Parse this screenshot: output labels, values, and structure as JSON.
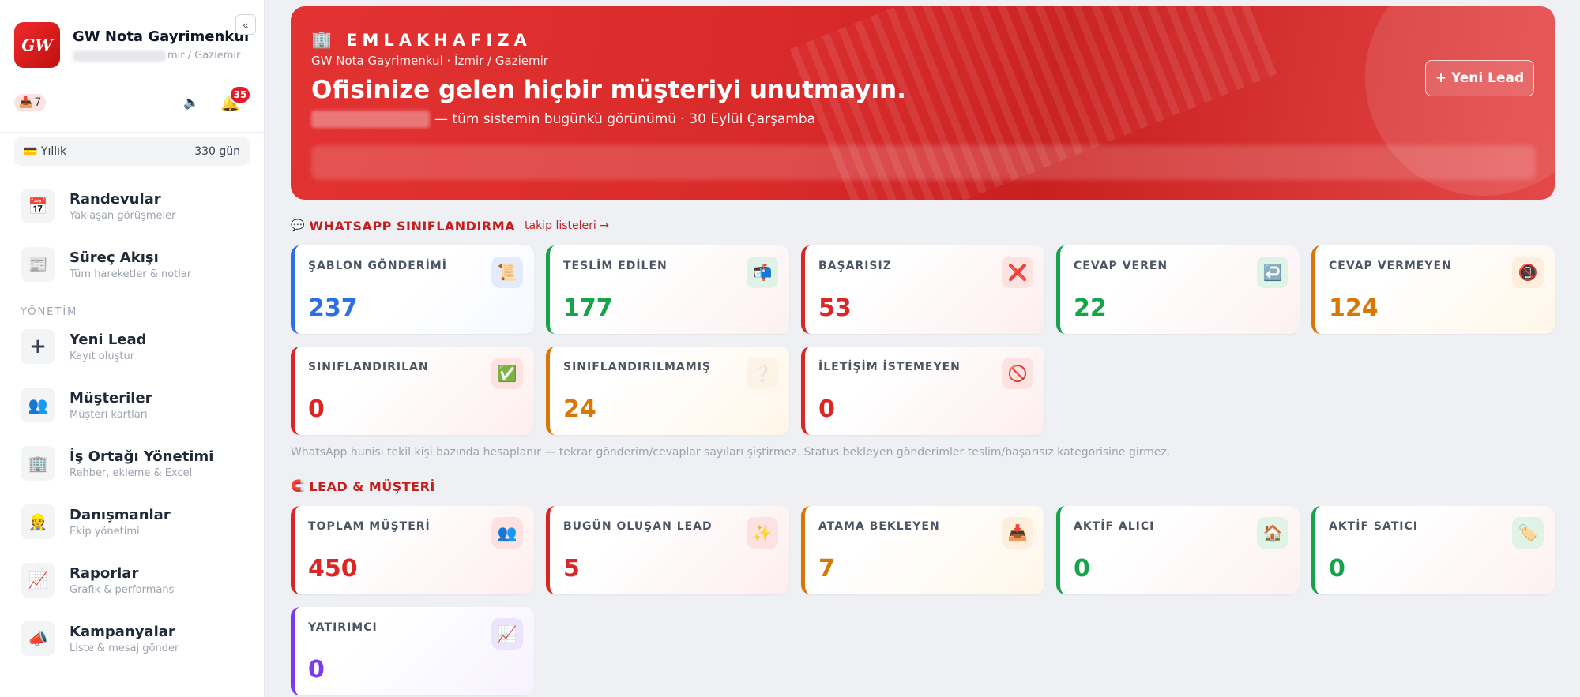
{
  "sidebar": {
    "brand_logo": "GW",
    "brand_name": "GW Nota Gayrimenkul",
    "brand_location": "mir / Gaziemir",
    "collapse_label": "«",
    "inbox_icon": "📥",
    "inbox_count": "7",
    "speaker_icon": "🔈",
    "bell_icon": "🔔",
    "notifications": "35",
    "plan_icon": "💳",
    "plan_name": "Yıllık",
    "plan_days": "330 gün",
    "items_top": [
      {
        "icon": "📅",
        "title": "Randevular",
        "sub": "Yaklaşan görüşmeler"
      },
      {
        "icon": "📰",
        "title": "Süreç Akışı",
        "sub": "Tüm hareketler & notlar"
      }
    ],
    "section_label": "YÖNETİM",
    "items": [
      {
        "icon": "+",
        "title": "Yeni Lead",
        "sub": "Kayıt oluştur"
      },
      {
        "icon": "👥",
        "title": "Müşteriler",
        "sub": "Müşteri kartları"
      },
      {
        "icon": "🏢",
        "title": "İş Ortağı Yönetimi",
        "sub": "Rehber, ekleme & Excel"
      },
      {
        "icon": "👷",
        "title": "Danışmanlar",
        "sub": "Ekip yönetimi"
      },
      {
        "icon": "📈",
        "title": "Raporlar",
        "sub": "Grafik & performans"
      },
      {
        "icon": "📣",
        "title": "Kampanyalar",
        "sub": "Liste & mesaj gönder"
      }
    ]
  },
  "hero": {
    "brand_icon": "🏢",
    "brand": "EMLAKHAFIZA",
    "location": "GW Nota Gayrimenkul · İzmir / Gaziemir",
    "title": "Ofisinize gelen hiçbir müşteriyi unutmayın.",
    "subtitle": "— tüm sistemin bugünkü görünümü · 30 Eylül Çarşamba",
    "new_lead_button": "+ Yeni Lead"
  },
  "whatsapp": {
    "icon": "💬",
    "title": "WHATSAPP SINIFLANDIRMA",
    "link": "takip listeleri →",
    "cards": [
      {
        "label": "ŞABLON GÖNDERİMİ",
        "value": "237",
        "icon": "📜",
        "color": "blue"
      },
      {
        "label": "TESLİM EDİLEN",
        "value": "177",
        "icon": "📬",
        "color": "green"
      },
      {
        "label": "BAŞARISIZ",
        "value": "53",
        "icon": "❌",
        "color": "red"
      },
      {
        "label": "CEVAP VEREN",
        "value": "22",
        "icon": "↩️",
        "color": "green"
      },
      {
        "label": "CEVAP VERMEYEN",
        "value": "124",
        "icon": "📵",
        "color": "orange"
      },
      {
        "label": "SINIFLANDIRILAN",
        "value": "0",
        "icon": "✅",
        "color": "red"
      },
      {
        "label": "SINIFLANDIRILMAMIŞ",
        "value": "24",
        "icon": "❔",
        "color": "orange"
      },
      {
        "label": "İLETİŞİM İSTEMEYEN",
        "value": "0",
        "icon": "🚫",
        "color": "red"
      }
    ],
    "note": "WhatsApp hunisi tekil kişi bazında hesaplanır — tekrar gönderim/cevaplar sayıları şiştirmez. Status bekleyen gönderimler teslim/başarısız kategorisine girmez."
  },
  "leads": {
    "icon": "🧲",
    "title": "LEAD & MÜŞTERİ",
    "cards": [
      {
        "label": "TOPLAM MÜŞTERİ",
        "value": "450",
        "icon": "👥",
        "color": "red"
      },
      {
        "label": "BUGÜN OLUŞAN LEAD",
        "value": "5",
        "icon": "✨",
        "color": "red"
      },
      {
        "label": "ATAMA BEKLEYEN",
        "value": "7",
        "icon": "📥",
        "color": "orange"
      },
      {
        "label": "AKTİF ALICI",
        "value": "0",
        "icon": "🏠",
        "color": "green"
      },
      {
        "label": "AKTİF SATICI",
        "value": "0",
        "icon": "🏷️",
        "color": "green"
      },
      {
        "label": "YATIRIMCI",
        "value": "0",
        "icon": "📈",
        "color": "purple"
      }
    ]
  },
  "colors": {
    "accent": "#c51f1f",
    "blue": "#2f6fe4",
    "green": "#16a34a",
    "red": "#dc2626",
    "orange": "#d97706",
    "purple": "#7c3aed"
  }
}
